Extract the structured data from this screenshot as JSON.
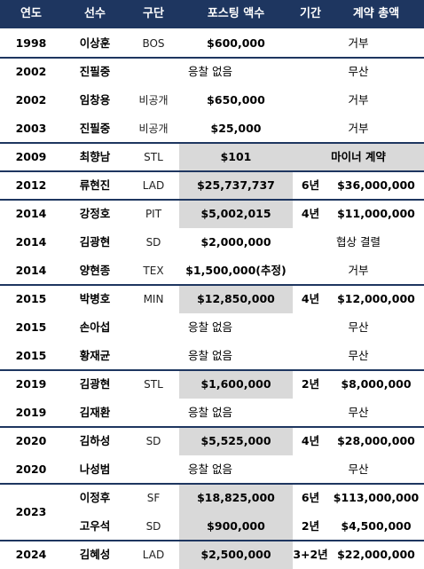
{
  "colors": {
    "header_bg": "#1e3660",
    "header_text": "#ffffff",
    "shade": "#d9d9d9",
    "divider": "#1e3660"
  },
  "headers": {
    "year": "연도",
    "player": "선수",
    "team": "구단",
    "fee": "포스팅 액수",
    "term": "기간",
    "total": "계약 총액"
  },
  "rows": [
    {
      "year": "1998",
      "player": "이상훈",
      "team": "BOS",
      "fee": "$600,000",
      "term": "",
      "total": "거부",
      "note": ""
    },
    {
      "year": "2002",
      "player": "진필중",
      "team": "",
      "fee": "",
      "term": "",
      "total": "무산",
      "note": "응찰 없음"
    },
    {
      "year": "2002",
      "player": "임창용",
      "team": "비공개",
      "fee": "$650,000",
      "term": "",
      "total": "거부",
      "note": ""
    },
    {
      "year": "2003",
      "player": "진필중",
      "team": "비공개",
      "fee": "$25,000",
      "term": "",
      "total": "거부",
      "note": ""
    },
    {
      "year": "2009",
      "player": "최향남",
      "team": "STL",
      "fee": "$101",
      "term": "",
      "total": "마이너 계약",
      "note": ""
    },
    {
      "year": "2012",
      "player": "류현진",
      "team": "LAD",
      "fee": "$25,737,737",
      "term": "6년",
      "total": "$36,000,000",
      "note": ""
    },
    {
      "year": "2014",
      "player": "강정호",
      "team": "PIT",
      "fee": "$5,002,015",
      "term": "4년",
      "total": "$11,000,000",
      "note": ""
    },
    {
      "year": "2014",
      "player": "김광현",
      "team": "SD",
      "fee": "$2,000,000",
      "term": "",
      "total": "협상 결렬",
      "note": ""
    },
    {
      "year": "2014",
      "player": "양현종",
      "team": "TEX",
      "fee": "$1,500,000(추정)",
      "term": "",
      "total": "거부",
      "note": ""
    },
    {
      "year": "2015",
      "player": "박병호",
      "team": "MIN",
      "fee": "$12,850,000",
      "term": "4년",
      "total": "$12,000,000",
      "note": ""
    },
    {
      "year": "2015",
      "player": "손아섭",
      "team": "",
      "fee": "",
      "term": "",
      "total": "무산",
      "note": "응찰 없음"
    },
    {
      "year": "2015",
      "player": "황재균",
      "team": "",
      "fee": "",
      "term": "",
      "total": "무산",
      "note": "응찰 없음"
    },
    {
      "year": "2019",
      "player": "김광현",
      "team": "STL",
      "fee": "$1,600,000",
      "term": "2년",
      "total": "$8,000,000",
      "note": ""
    },
    {
      "year": "2019",
      "player": "김재환",
      "team": "",
      "fee": "",
      "term": "",
      "total": "무산",
      "note": "응찰 없음"
    },
    {
      "year": "2020",
      "player": "김하성",
      "team": "SD",
      "fee": "$5,525,000",
      "term": "4년",
      "total": "$28,000,000",
      "note": ""
    },
    {
      "year": "2020",
      "player": "나성범",
      "team": "",
      "fee": "",
      "term": "",
      "total": "무산",
      "note": "응찰 없음"
    },
    {
      "year": "2023",
      "player": "이정후",
      "team": "SF",
      "fee": "$18,825,000",
      "term": "6년",
      "total": "$113,000,000",
      "note": ""
    },
    {
      "year": "",
      "player": "고우석",
      "team": "SD",
      "fee": "$900,000",
      "term": "2년",
      "total": "$4,500,000",
      "note": ""
    },
    {
      "year": "2024",
      "player": "김혜성",
      "team": "LAD",
      "fee": "$2,500,000",
      "term": "3+2년",
      "total": "$22,000,000",
      "note": ""
    }
  ],
  "merged_year": "2023"
}
